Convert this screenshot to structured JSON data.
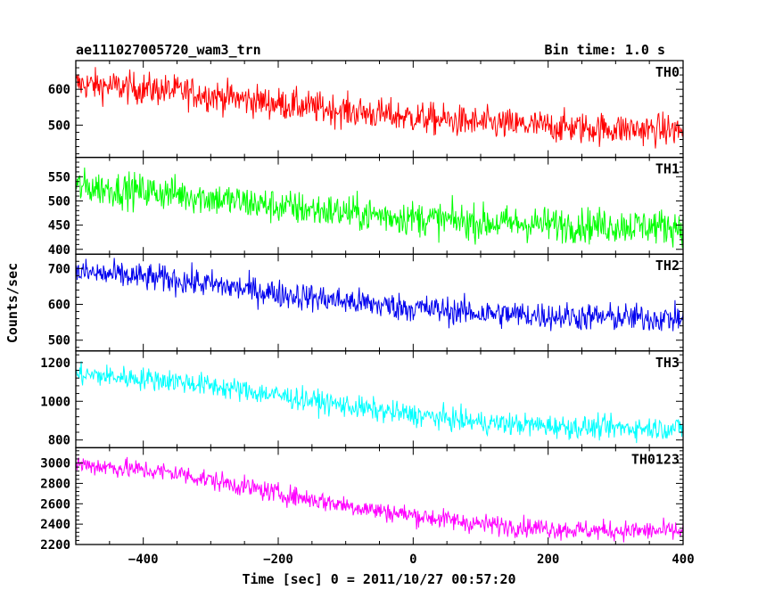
{
  "chart_data": {
    "type": "line",
    "title": "ae111027005720_wam3_trn",
    "subtitle": "Bin time: 1.0 s",
    "xlabel": "Time [sec] 0 = 2011/10/27 00:57:20",
    "ylabel": "Counts/sec",
    "xlim": [
      -500,
      400
    ],
    "x_range_data": [
      -500,
      400
    ],
    "x_ticks": [
      -400,
      -200,
      0,
      200,
      400
    ],
    "x_tick_labels": [
      "−400",
      "−200",
      "0",
      "200",
      "400"
    ],
    "grid": false,
    "panels": [
      {
        "name": "TH0",
        "color": "#ff0000",
        "ylim": [
          410,
          680
        ],
        "y_ticks": [
          500,
          600
        ],
        "y_tick_labels": [
          "500",
          "600"
        ],
        "trend": [
          {
            "x": -500,
            "y": 615
          },
          {
            "x": -350,
            "y": 595
          },
          {
            "x": -200,
            "y": 560
          },
          {
            "x": -50,
            "y": 530
          },
          {
            "x": 100,
            "y": 505
          },
          {
            "x": 250,
            "y": 492
          },
          {
            "x": 400,
            "y": 485
          }
        ],
        "noise_amplitude": 32
      },
      {
        "name": "TH1",
        "color": "#00ff00",
        "ylim": [
          390,
          590
        ],
        "y_ticks": [
          400,
          450,
          500,
          550
        ],
        "y_tick_labels": [
          "400",
          "450",
          "500",
          "550"
        ],
        "trend": [
          {
            "x": -500,
            "y": 530
          },
          {
            "x": -350,
            "y": 515
          },
          {
            "x": -200,
            "y": 488
          },
          {
            "x": -50,
            "y": 470
          },
          {
            "x": 100,
            "y": 455
          },
          {
            "x": 250,
            "y": 450
          },
          {
            "x": 400,
            "y": 447
          }
        ],
        "noise_amplitude": 26
      },
      {
        "name": "TH2",
        "color": "#0000ee",
        "ylim": [
          470,
          740
        ],
        "y_ticks": [
          500,
          600,
          700
        ],
        "y_tick_labels": [
          "500",
          "600",
          "700"
        ],
        "trend": [
          {
            "x": -500,
            "y": 690
          },
          {
            "x": -350,
            "y": 668
          },
          {
            "x": -200,
            "y": 630
          },
          {
            "x": -50,
            "y": 598
          },
          {
            "x": 100,
            "y": 575
          },
          {
            "x": 250,
            "y": 565
          },
          {
            "x": 400,
            "y": 560
          }
        ],
        "noise_amplitude": 28
      },
      {
        "name": "TH3",
        "color": "#00ffff",
        "ylim": [
          760,
          1260
        ],
        "y_ticks": [
          800,
          1000,
          1200
        ],
        "y_tick_labels": [
          "800",
          "1000",
          "1200"
        ],
        "trend": [
          {
            "x": -500,
            "y": 1140
          },
          {
            "x": -350,
            "y": 1105
          },
          {
            "x": -200,
            "y": 1030
          },
          {
            "x": -50,
            "y": 950
          },
          {
            "x": 100,
            "y": 890
          },
          {
            "x": 250,
            "y": 865
          },
          {
            "x": 400,
            "y": 860
          }
        ],
        "noise_amplitude": 42
      },
      {
        "name": "TH0123",
        "color": "#ff00ff",
        "ylim": [
          2200,
          3150
        ],
        "y_ticks": [
          2200,
          2400,
          2600,
          2800,
          3000
        ],
        "y_tick_labels": [
          "2200",
          "2400",
          "2600",
          "2800",
          "3000"
        ],
        "trend": [
          {
            "x": -500,
            "y": 2990
          },
          {
            "x": -350,
            "y": 2900
          },
          {
            "x": -200,
            "y": 2700
          },
          {
            "x": -50,
            "y": 2530
          },
          {
            "x": 100,
            "y": 2400
          },
          {
            "x": 250,
            "y": 2340
          },
          {
            "x": 400,
            "y": 2330
          }
        ],
        "noise_amplitude": 70
      }
    ]
  }
}
